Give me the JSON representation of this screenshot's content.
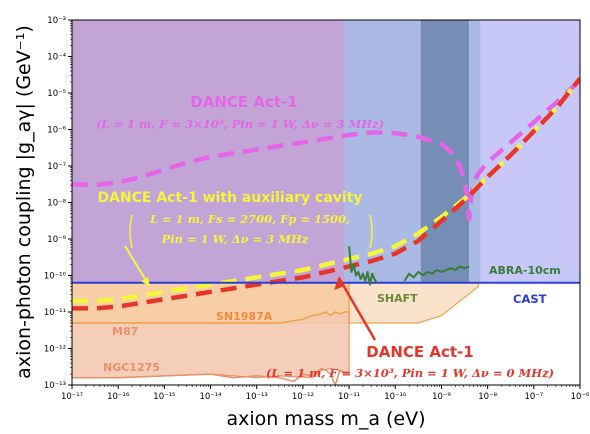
{
  "chart_data": {
    "type": "line",
    "title": "",
    "xlabel": "axion mass m_a (eV)",
    "ylabel": "axion-photon coupling |g_aγ| (GeV⁻¹)",
    "x_scale": "log",
    "y_scale": "log",
    "xlim": [
      1e-17,
      1e-06
    ],
    "ylim": [
      1e-13,
      0.001
    ],
    "x_ticks": [
      {
        "exp": -17,
        "label": "10⁻¹⁷"
      },
      {
        "exp": -16,
        "label": "10⁻¹⁶"
      },
      {
        "exp": -15,
        "label": "10⁻¹⁵"
      },
      {
        "exp": -14,
        "label": "10⁻¹⁴"
      },
      {
        "exp": -13,
        "label": "10⁻¹³"
      },
      {
        "exp": -12,
        "label": "10⁻¹²"
      },
      {
        "exp": -11,
        "label": "10⁻¹¹"
      },
      {
        "exp": -10,
        "label": "10⁻¹⁰"
      },
      {
        "exp": -9,
        "label": "10⁻⁹"
      },
      {
        "exp": -8,
        "label": "10⁻⁸"
      },
      {
        "exp": -7,
        "label": "10⁻⁷"
      },
      {
        "exp": -6,
        "label": "10⁻⁶"
      }
    ],
    "y_ticks": [
      {
        "exp": -13,
        "label": "10⁻¹³"
      },
      {
        "exp": -12,
        "label": "10⁻¹²"
      },
      {
        "exp": -11,
        "label": "10⁻¹¹"
      },
      {
        "exp": -10,
        "label": "10⁻¹⁰"
      },
      {
        "exp": -9,
        "label": "10⁻⁹"
      },
      {
        "exp": -8,
        "label": "10⁻⁸"
      },
      {
        "exp": -7,
        "label": "10⁻⁷"
      },
      {
        "exp": -6,
        "label": "10⁻⁶"
      },
      {
        "exp": -5,
        "label": "10⁻⁵"
      },
      {
        "exp": -4,
        "label": "10⁻⁴"
      },
      {
        "exp": -3,
        "label": "10⁻³"
      }
    ],
    "regions": [
      {
        "name": "purple-region",
        "color": "#a97dc6",
        "opacity": 0.7,
        "x_exp": [
          -17,
          -11.1
        ],
        "y_exp": [
          -10.2,
          -3
        ]
      },
      {
        "name": "blue-region-1",
        "color": "#8fa3dc",
        "opacity": 0.75,
        "x_exp": [
          -11.1,
          -9.45
        ],
        "y_exp": [
          -10.2,
          -3
        ]
      },
      {
        "name": "blue-region-dark",
        "color": "#5e7aa8",
        "opacity": 0.85,
        "x_exp": [
          -9.45,
          -8.4
        ],
        "y_exp": [
          -10.2,
          -3
        ]
      },
      {
        "name": "blue-region-2",
        "color": "#8fa3dc",
        "opacity": 0.75,
        "x_exp": [
          -8.4,
          -8.15
        ],
        "y_exp": [
          -10.2,
          -3
        ]
      },
      {
        "name": "blue-region-light",
        "color": "#c2c2f7",
        "opacity": 0.9,
        "x_exp": [
          -8.15,
          -6
        ],
        "y_exp": [
          -10.2,
          -3
        ]
      }
    ],
    "series": [
      {
        "name": "DANCE Act-1 (Δν = 3 MHz)",
        "color": "#e466e6",
        "width": 4.5,
        "dash": "16,9",
        "x_exp": [
          -17,
          -16.5,
          -16.0,
          -15.5,
          -15.0,
          -14.5,
          -14.0,
          -13.5,
          -13.0,
          -12.5,
          -12.0,
          -11.5,
          -11.0,
          -10.5,
          -10.0,
          -9.5,
          -9.0,
          -8.8,
          -8.6,
          -8.5,
          -8.45,
          -8.4,
          -8.35,
          -8.3,
          -8.2,
          -8.0,
          -7.5,
          -7.0,
          -6.5,
          -6.0
        ],
        "y_exp": [
          -7.5,
          -7.52,
          -7.45,
          -7.3,
          -7.1,
          -6.9,
          -6.75,
          -6.65,
          -6.55,
          -6.45,
          -6.35,
          -6.25,
          -6.15,
          -6.08,
          -6.1,
          -6.2,
          -6.4,
          -6.6,
          -7.0,
          -7.4,
          -7.8,
          -8.45,
          -7.8,
          -7.45,
          -7.2,
          -6.9,
          -6.35,
          -5.8,
          -5.25,
          -4.65
        ]
      },
      {
        "name": "DANCE Act-1 with auxiliary cavity",
        "color": "#f5f53c",
        "width": 4.5,
        "dash": "16,9",
        "x_exp": [
          -17,
          -16.5,
          -16.0,
          -15.5,
          -15.0,
          -14.5,
          -14.0,
          -13.5,
          -13.0,
          -12.5,
          -12.0,
          -11.5,
          -11.0,
          -10.5,
          -10.0,
          -9.5,
          -9.0,
          -8.5,
          -8.0,
          -7.5,
          -7.0,
          -6.5,
          -6.0
        ],
        "y_exp": [
          -10.7,
          -10.7,
          -10.65,
          -10.55,
          -10.45,
          -10.35,
          -10.25,
          -10.15,
          -10.05,
          -9.95,
          -9.85,
          -9.7,
          -9.55,
          -9.4,
          -9.2,
          -8.85,
          -8.4,
          -7.9,
          -7.3,
          -6.7,
          -6.05,
          -5.4,
          -4.6
        ]
      },
      {
        "name": "DANCE Act-1 (Δν = 0 MHz)",
        "color": "#e8352a",
        "width": 4.5,
        "dash": "16,9",
        "x_exp": [
          -17,
          -16.5,
          -16.0,
          -15.5,
          -15.0,
          -14.5,
          -14.0,
          -13.5,
          -13.0,
          -12.5,
          -12.0,
          -11.5,
          -11.0,
          -10.5,
          -10.0,
          -9.5,
          -9.0,
          -8.5,
          -8.0,
          -7.5,
          -7.0,
          -6.5,
          -6.0
        ],
        "y_exp": [
          -10.9,
          -10.9,
          -10.85,
          -10.75,
          -10.65,
          -10.55,
          -10.45,
          -10.35,
          -10.25,
          -10.15,
          -10.05,
          -9.9,
          -9.75,
          -9.6,
          -9.4,
          -9.05,
          -8.5,
          -7.95,
          -7.3,
          -6.7,
          -6.05,
          -5.4,
          -4.6
        ]
      },
      {
        "name": "CAST",
        "color": "#2a3fd6",
        "width": 2,
        "dash": "",
        "x_exp": [
          -17,
          -6
        ],
        "y_exp": [
          -10.2,
          -10.2
        ]
      },
      {
        "name": "SHAFT",
        "color": "#3a7a3a",
        "width": 2,
        "dash": "",
        "x_exp": [
          -11.0,
          -10.95,
          -10.9,
          -10.85,
          -10.8,
          -10.75,
          -10.7,
          -10.65,
          -10.6,
          -10.55,
          -10.5,
          -10.45,
          -10.4
        ],
        "y_exp": [
          -9.2,
          -9.9,
          -9.7,
          -10.0,
          -9.9,
          -10.1,
          -9.95,
          -10.15,
          -9.9,
          -10.25,
          -9.95,
          -10.1,
          -10.2
        ]
      },
      {
        "name": "ABRA-10cm",
        "color": "#3a7a3a",
        "width": 2,
        "dash": "",
        "x_exp": [
          -9.8,
          -9.7,
          -9.6,
          -9.5,
          -9.4,
          -9.3,
          -9.2,
          -9.1,
          -9.0,
          -8.9,
          -8.8,
          -8.7,
          -8.6,
          -8.5,
          -8.4
        ],
        "y_exp": [
          -10.15,
          -9.95,
          -10.05,
          -9.9,
          -10.0,
          -9.9,
          -9.95,
          -9.85,
          -9.9,
          -9.85,
          -9.8,
          -9.85,
          -9.75,
          -9.8,
          -9.75
        ]
      }
    ],
    "fills": [
      {
        "name": "SN1987A",
        "color": "#f7c697",
        "opacity": 0.85,
        "stroke": "#f0a34e",
        "x_exp": [
          -17,
          -11.0,
          -11.0,
          -17
        ],
        "y_exp": [
          -10.2,
          -10.2,
          -11.3,
          -11.3
        ]
      },
      {
        "name": "SHAFT-region",
        "color": "#f9e0c5",
        "opacity": 0.9,
        "stroke": "#f0a34e",
        "x_exp": [
          -11.0,
          -10.5,
          -10.0,
          -9.5,
          -9.0,
          -8.5,
          -8.2,
          -8.2,
          -9.0,
          -9.5,
          -10.0,
          -10.5,
          -11.0
        ],
        "y_exp": [
          -10.2,
          -10.2,
          -10.2,
          -10.2,
          -10.2,
          -10.2,
          -10.2,
          -10.3,
          -11.1,
          -11.3,
          -11.3,
          -11.3,
          -11.3
        ]
      },
      {
        "name": "M87",
        "color": "#f4c9b2",
        "opacity": 0.9,
        "stroke": "#e8906a",
        "x_exp": [
          -17,
          -12.5,
          -12.0,
          -11.8,
          -11.6,
          -11.5,
          -11.4,
          -11.3,
          -11.2,
          -11.1,
          -11.0,
          -11.0,
          -11.2,
          -11.4,
          -11.6,
          -11.8,
          -12.5,
          -13.0,
          -13.5,
          -14.0,
          -15.0,
          -16.0,
          -17
        ],
        "y_exp": [
          -11.3,
          -11.3,
          -11.2,
          -11.1,
          -11.05,
          -11.0,
          -11.1,
          -11.0,
          -11.05,
          -11.0,
          -11.0,
          -12.7,
          -12.6,
          -12.55,
          -12.6,
          -12.8,
          -12.75,
          -12.8,
          -12.75,
          -12.7,
          -12.75,
          -12.8,
          -12.8
        ]
      }
    ],
    "curves": [
      {
        "name": "M87-line",
        "color": "#f0a34e",
        "width": 1.5,
        "x_exp": [
          -17,
          -12.5,
          -12.0,
          -11.8,
          -11.6,
          -11.5,
          -11.4,
          -11.3,
          -11.2,
          -11.1,
          -11.0
        ],
        "y_exp": [
          -11.3,
          -11.3,
          -11.2,
          -11.1,
          -11.05,
          -11.0,
          -11.1,
          -11.0,
          -11.05,
          -11.0,
          -11.0
        ]
      },
      {
        "name": "NGC1275-line",
        "color": "#e8906a",
        "width": 1.5,
        "x_exp": [
          -17,
          -16.0,
          -15.0,
          -14.0,
          -13.5,
          -13.0,
          -12.5,
          -12.2,
          -12.0,
          -11.8,
          -11.6,
          -11.5,
          -11.4,
          -11.3,
          -11.2,
          -11.1,
          -11.0
        ],
        "y_exp": [
          -12.8,
          -12.8,
          -12.75,
          -12.7,
          -12.8,
          -12.75,
          -12.8,
          -12.9,
          -12.7,
          -12.75,
          -12.55,
          -12.6,
          -12.7,
          -13.0,
          -12.6,
          -12.7,
          -12.65
        ]
      }
    ],
    "labels": {
      "dance_top": "DANCE Act-1",
      "dance_top_params": "(L = 1 m, F = 3×10³, Pin = 1 W, Δν = 3 MHz)",
      "dance_aux": "DANCE Act-1 with auxiliary cavity",
      "dance_aux_params_1": "L = 1 m, Fs = 2700, Fp = 1500,",
      "dance_aux_params_2": "Pin = 1 W, Δν = 3 MHz",
      "dance_bottom": "DANCE Act-1",
      "dance_bottom_params": "(L = 1 m, F = 3×10³, Pin = 1 W, Δν = 0 MHz)",
      "abra": "ABRA-10cm",
      "shaft": "SHAFT",
      "cast": "CAST",
      "sn1987a": "SN1987A",
      "m87": "M87",
      "ngc1275": "NGC1275"
    },
    "colors": {
      "dance_top": "#e466e6",
      "dance_aux": "#f5f53c",
      "dance_bottom": "#e8352a",
      "abra": "#3a7a3a",
      "shaft": "#6a8a3a",
      "cast": "#2a3fd6",
      "sn1987a": "#f08a3a",
      "m87": "#e8906a",
      "ngc1275": "#e8906a"
    }
  }
}
